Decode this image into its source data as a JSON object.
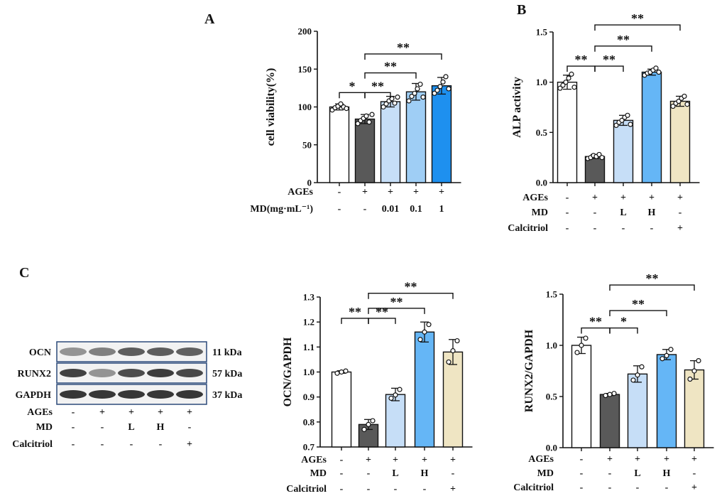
{
  "colors": {
    "control": "#ffffff",
    "ages": "#595959",
    "low": "#c6def7",
    "mid": "#9fcef5",
    "high": "#65b6f6",
    "max": "#1e90ef",
    "calcitriol": "#efe5c3",
    "axis": "#111111",
    "blot_frame": "#2c4a7a"
  },
  "panels": {
    "A": "A",
    "B": "B",
    "C": "C"
  },
  "blot": {
    "bands": [
      {
        "name": "OCN",
        "mw": "11 kDa"
      },
      {
        "name": "RUNX2",
        "mw": "57 kDa"
      },
      {
        "name": "GAPDH",
        "mw": "37 kDa"
      }
    ],
    "conditions": [
      {
        "label": "AGEs",
        "values": [
          "-",
          "+",
          "+",
          "+",
          "+"
        ]
      },
      {
        "label": "MD",
        "values": [
          "-",
          "-",
          "L",
          "H",
          "-"
        ]
      },
      {
        "label": "Calcitriol",
        "values": [
          "-",
          "-",
          "-",
          "-",
          "+"
        ]
      }
    ]
  },
  "chart_data": [
    {
      "id": "A",
      "type": "bar",
      "ylabel": "cell viability(%)",
      "ylim": [
        0,
        200
      ],
      "yticks": [
        "0",
        "50",
        "100",
        "150",
        "200"
      ],
      "values": [
        100,
        84,
        107,
        120,
        128
      ],
      "errors": [
        4,
        6,
        7,
        11,
        11
      ],
      "points": [
        [
          96,
          99,
          101,
          104,
          100,
          98
        ],
        [
          78,
          82,
          85,
          88,
          80,
          90
        ],
        [
          100,
          104,
          108,
          111,
          105,
          113
        ],
        [
          108,
          114,
          118,
          124,
          130,
          113
        ],
        [
          118,
          122,
          127,
          133,
          140,
          124
        ]
      ],
      "colors": [
        "control",
        "ages",
        "low",
        "mid",
        "max"
      ],
      "conditions": [
        {
          "label": "AGEs",
          "values": [
            "-",
            "+",
            "+",
            "+",
            "+"
          ]
        },
        {
          "label": "MD(mg·mL⁻¹)",
          "values": [
            "-",
            "-",
            "0.01",
            "0.1",
            "1"
          ]
        }
      ],
      "significance": [
        {
          "from": 0,
          "to": 1,
          "label": "*",
          "y": 119
        },
        {
          "from": 1,
          "to": 2,
          "label": "**",
          "y": 119
        },
        {
          "from": 1,
          "to": 3,
          "label": "**",
          "y": 145
        },
        {
          "from": 1,
          "to": 4,
          "label": "**",
          "y": 170
        }
      ]
    },
    {
      "id": "B",
      "type": "bar",
      "ylabel": "ALP activity",
      "ylim": [
        0,
        1.5
      ],
      "yticks": [
        "0.0",
        "0.5",
        "1.0",
        "1.5"
      ],
      "values": [
        1.0,
        0.26,
        0.62,
        1.1,
        0.81
      ],
      "errors": [
        0.07,
        0.02,
        0.05,
        0.03,
        0.05
      ],
      "points": [
        [
          0.94,
          0.97,
          1.0,
          1.04,
          1.08,
          0.95
        ],
        [
          0.24,
          0.25,
          0.27,
          0.26,
          0.28,
          0.25
        ],
        [
          0.57,
          0.6,
          0.62,
          0.65,
          0.67,
          0.58
        ],
        [
          1.07,
          1.09,
          1.1,
          1.12,
          1.14,
          1.1
        ],
        [
          0.76,
          0.79,
          0.81,
          0.84,
          0.86,
          0.78
        ]
      ],
      "colors": [
        "control",
        "ages",
        "low",
        "high",
        "calcitriol"
      ],
      "conditions": [
        {
          "label": "AGEs",
          "values": [
            "-",
            "+",
            "+",
            "+",
            "+"
          ]
        },
        {
          "label": "MD",
          "values": [
            "-",
            "-",
            "L",
            "H",
            "-"
          ]
        },
        {
          "label": "Calcitriol",
          "values": [
            "-",
            "-",
            "-",
            "-",
            "+"
          ]
        }
      ],
      "significance": [
        {
          "from": 0,
          "to": 1,
          "label": "**",
          "y": 1.16
        },
        {
          "from": 1,
          "to": 2,
          "label": "**",
          "y": 1.16
        },
        {
          "from": 1,
          "to": 3,
          "label": "**",
          "y": 1.36
        },
        {
          "from": 1,
          "to": 4,
          "label": "**",
          "y": 1.57
        }
      ]
    },
    {
      "id": "C-OCN",
      "type": "bar",
      "ylabel": "OCN/GAPDH",
      "ylim": [
        0.7,
        1.3
      ],
      "yticks": [
        "0.7",
        "0.8",
        "0.9",
        "1.0",
        "1.1",
        "1.2",
        "1.3"
      ],
      "values": [
        1.0,
        0.79,
        0.91,
        1.16,
        1.08
      ],
      "errors": [
        0.005,
        0.02,
        0.025,
        0.04,
        0.05
      ],
      "points": [
        [
          0.995,
          1.0,
          1.004
        ],
        [
          0.77,
          0.79,
          0.805
        ],
        [
          0.895,
          0.908,
          0.93
        ],
        [
          1.13,
          1.16,
          1.19
        ],
        [
          1.04,
          1.085,
          1.125
        ]
      ],
      "colors": [
        "control",
        "ages",
        "low",
        "high",
        "calcitriol"
      ],
      "conditions": [
        {
          "label": "AGEs",
          "values": [
            "-",
            "+",
            "+",
            "+",
            "+"
          ]
        },
        {
          "label": "MD",
          "values": [
            "-",
            "-",
            "L",
            "H",
            "-"
          ]
        },
        {
          "label": "Calcitriol",
          "values": [
            "-",
            "-",
            "-",
            "-",
            "+"
          ]
        }
      ],
      "significance": [
        {
          "from": 0,
          "to": 1,
          "label": "**",
          "y": 1.215
        },
        {
          "from": 1,
          "to": 2,
          "label": "**",
          "y": 1.215
        },
        {
          "from": 1,
          "to": 3,
          "label": "**",
          "y": 1.255
        },
        {
          "from": 1,
          "to": 4,
          "label": "**",
          "y": 1.315
        }
      ]
    },
    {
      "id": "C-RUNX2",
      "type": "bar",
      "ylabel": "RUNX2/GAPDH",
      "ylim": [
        0,
        1.5
      ],
      "yticks": [
        "0.0",
        "0.5",
        "1.0",
        "1.5"
      ],
      "values": [
        1.0,
        0.52,
        0.72,
        0.91,
        0.76
      ],
      "errors": [
        0.08,
        0.01,
        0.08,
        0.05,
        0.09
      ],
      "points": [
        [
          0.93,
          1.0,
          1.07
        ],
        [
          0.51,
          0.52,
          0.53
        ],
        [
          0.66,
          0.71,
          0.79
        ],
        [
          0.87,
          0.9,
          0.96
        ],
        [
          0.67,
          0.75,
          0.85
        ]
      ],
      "colors": [
        "control",
        "ages",
        "low",
        "high",
        "calcitriol"
      ],
      "conditions": [
        {
          "label": "AGEs",
          "values": [
            "-",
            "+",
            "+",
            "+",
            "+"
          ]
        },
        {
          "label": "MD",
          "values": [
            "-",
            "-",
            "L",
            "H",
            "-"
          ]
        },
        {
          "label": "Calcitriol",
          "values": [
            "-",
            "-",
            "-",
            "-",
            "+"
          ]
        }
      ],
      "significance": [
        {
          "from": 0,
          "to": 1,
          "label": "**",
          "y": 1.17
        },
        {
          "from": 1,
          "to": 2,
          "label": "*",
          "y": 1.17
        },
        {
          "from": 1,
          "to": 3,
          "label": "**",
          "y": 1.34
        },
        {
          "from": 1,
          "to": 4,
          "label": "**",
          "y": 1.59
        }
      ]
    }
  ]
}
